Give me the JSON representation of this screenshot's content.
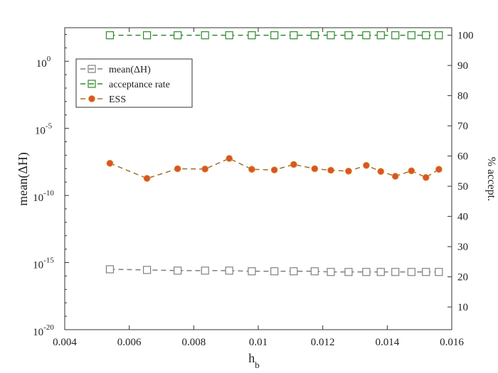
{
  "chart_data": {
    "type": "line",
    "xlabel": "h",
    "xlabel_subscript": "b",
    "ylabel_left": "mean(ΔH)",
    "ylabel_right": "% accept.",
    "xlim": [
      0.004,
      0.016
    ],
    "xticks": [
      "0.004",
      "0.006",
      "0.008",
      "0.01",
      "0.012",
      "0.014",
      "0.016"
    ],
    "ylim_left_log10": [
      -20,
      2.5
    ],
    "yticks_left": [
      {
        "base": "10",
        "exp": "0"
      },
      {
        "base": "10",
        "exp": "-5"
      },
      {
        "base": "10",
        "exp": "-10"
      },
      {
        "base": "10",
        "exp": "-15"
      },
      {
        "base": "10",
        "exp": "-20"
      }
    ],
    "ylim_right": [
      2.5,
      102.5
    ],
    "yticks_right": [
      "10",
      "20",
      "30",
      "40",
      "50",
      "60",
      "70",
      "80",
      "90",
      "100"
    ],
    "legend_position": "upper-left",
    "x": [
      0.0054,
      0.00655,
      0.0075,
      0.00835,
      0.0091,
      0.0098,
      0.0105,
      0.0111,
      0.01175,
      0.01225,
      0.0128,
      0.01335,
      0.0138,
      0.01425,
      0.01475,
      0.0152,
      0.0156
    ],
    "series": [
      {
        "name": "mean(ΔH)",
        "axis": "left",
        "scale": "log10",
        "marker": "square-open",
        "color": "#7f7f7f",
        "values_log10": [
          -15.5,
          -15.55,
          -15.6,
          -15.6,
          -15.6,
          -15.65,
          -15.65,
          -15.65,
          -15.65,
          -15.7,
          -15.7,
          -15.7,
          -15.7,
          -15.7,
          -15.7,
          -15.7,
          -15.7
        ]
      },
      {
        "name": "acceptance rate",
        "axis": "right",
        "marker": "square-open",
        "color": "#2e8b2e",
        "values": [
          100,
          100,
          100,
          100,
          100,
          100,
          100,
          100,
          100,
          100,
          100,
          100,
          100,
          100,
          100,
          100,
          100
        ]
      },
      {
        "name": "ESS",
        "axis": "right",
        "marker": "circle-filled",
        "color": "#d9542a",
        "line_color": "#a0702a",
        "values": [
          57.6,
          52.6,
          55.8,
          55.7,
          59.2,
          55.6,
          55.4,
          57.2,
          55.8,
          55.3,
          55.0,
          56.9,
          54.9,
          53.3,
          55.1,
          52.9,
          55.6
        ]
      }
    ]
  }
}
